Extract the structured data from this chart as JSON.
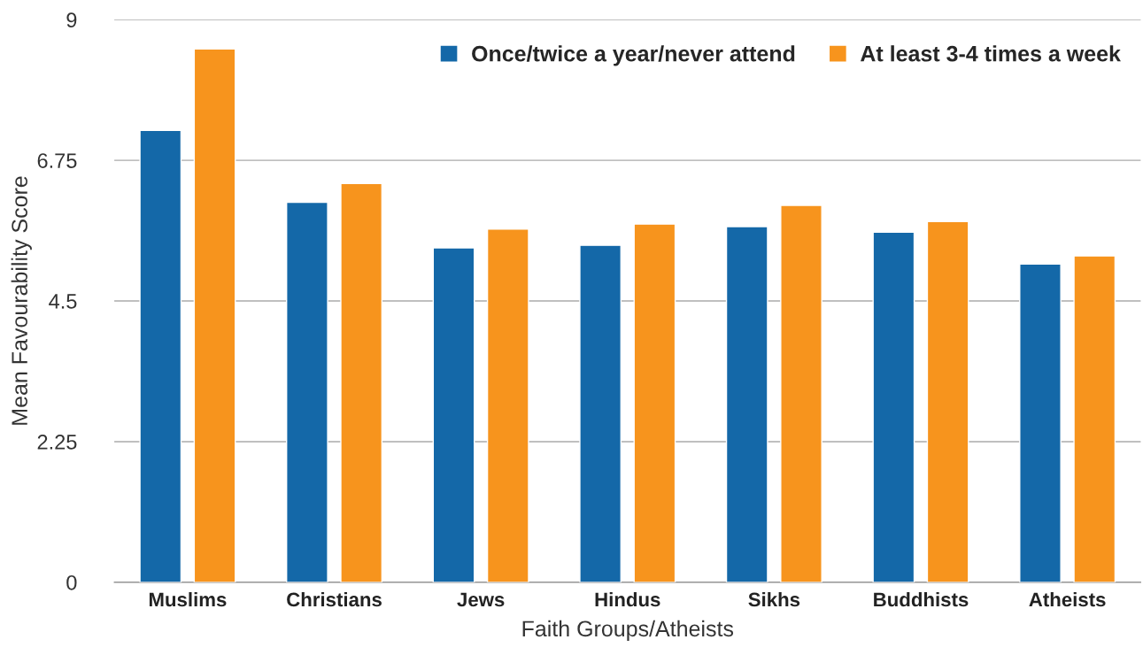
{
  "chart_data": {
    "type": "bar",
    "xlabel": "Faith Groups/Atheists",
    "ylabel": "Mean Favourability Score",
    "categories": [
      "Muslims",
      "Christians",
      "Jews",
      "Hindus",
      "Sikhs",
      "Buddhists",
      "Atheists"
    ],
    "series": [
      {
        "name": "Once/twice a year/never attend",
        "color": "#1468a8",
        "values": [
          7.23,
          6.08,
          5.35,
          5.39,
          5.69,
          5.6,
          5.09
        ]
      },
      {
        "name": "At least 3-4 times a week",
        "color": "#f7941d",
        "values": [
          8.53,
          6.38,
          5.65,
          5.73,
          6.03,
          5.77,
          5.22
        ]
      }
    ],
    "ylim": [
      0,
      9
    ],
    "yticks": [
      0,
      2.25,
      4.5,
      6.75,
      9
    ],
    "grid": "y",
    "legend": "top right"
  }
}
